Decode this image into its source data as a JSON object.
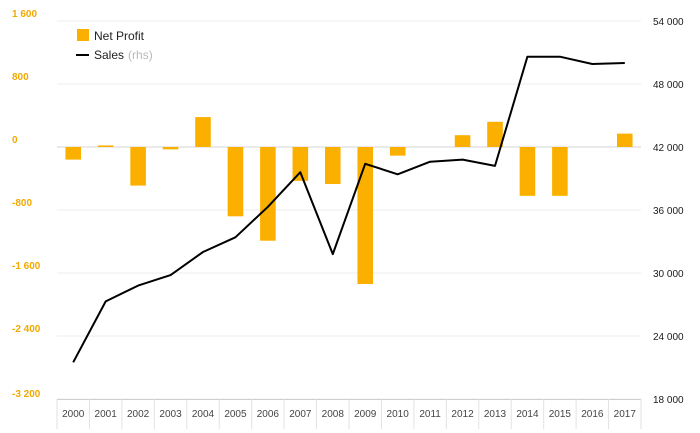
{
  "chart_data": {
    "type": "bar+line",
    "categories": [
      "2000",
      "2001",
      "2002",
      "2003",
      "2004",
      "2005",
      "2006",
      "2007",
      "2008",
      "2009",
      "2010",
      "2011",
      "2012",
      "2013",
      "2014",
      "2015",
      "2016",
      "2017"
    ],
    "series": [
      {
        "name": "Net Profit",
        "type": "bar",
        "axis": "left",
        "color": "#fbb000",
        "values": [
          -160,
          20,
          -490,
          -30,
          380,
          -880,
          -1190,
          -430,
          -470,
          -1740,
          -110,
          0,
          150,
          320,
          -620,
          -620,
          0,
          170
        ]
      },
      {
        "name": "Sales",
        "type": "line",
        "axis": "right",
        "color": "#000000",
        "values": [
          21500,
          27300,
          28800,
          29800,
          32000,
          33400,
          36300,
          39600,
          31800,
          40400,
          39400,
          40600,
          40800,
          40200,
          50600,
          50600,
          49900,
          50000
        ]
      }
    ],
    "legend": {
      "position": "top-left",
      "items": [
        {
          "label": "Net Profit",
          "suffix": "",
          "color": "#fbb000",
          "marker": "square"
        },
        {
          "label": "Sales",
          "suffix": "(rhs)",
          "color": "#000000",
          "marker": "line"
        }
      ]
    },
    "y_left": {
      "range": [
        -3200,
        1600
      ],
      "ticks": [
        1600,
        800,
        0,
        -800,
        -1600,
        -2400,
        -3200
      ],
      "tick_labels": [
        "1 600",
        "800",
        "0",
        "-800",
        "-1 600",
        "-2 400",
        "-3 200"
      ],
      "color": "#f2a900"
    },
    "y_right": {
      "range": [
        18000,
        54000
      ],
      "ticks": [
        54000,
        48000,
        42000,
        36000,
        30000,
        24000,
        18000
      ],
      "tick_labels": [
        "54 000",
        "48 000",
        "42 000",
        "36 000",
        "30 000",
        "24 000",
        "18 000"
      ],
      "color": "#1a1a1a"
    },
    "grid": true
  }
}
